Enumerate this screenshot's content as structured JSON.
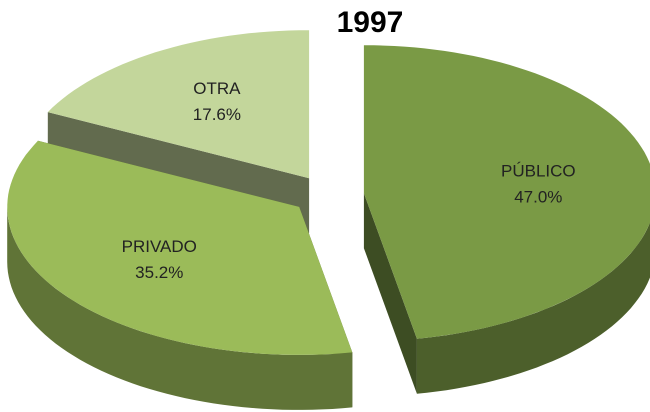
{
  "chart_data": {
    "type": "pie3d",
    "title": "1997",
    "categories": [
      "PÚBLICO",
      "PRIVADO",
      "OTRA"
    ],
    "values": [
      47.0,
      35.2,
      17.6
    ],
    "value_labels": [
      "47.0%",
      "35.2%",
      "17.6%"
    ],
    "colors": [
      "#7a9a45",
      "#9bbb59",
      "#c3d69b"
    ]
  }
}
